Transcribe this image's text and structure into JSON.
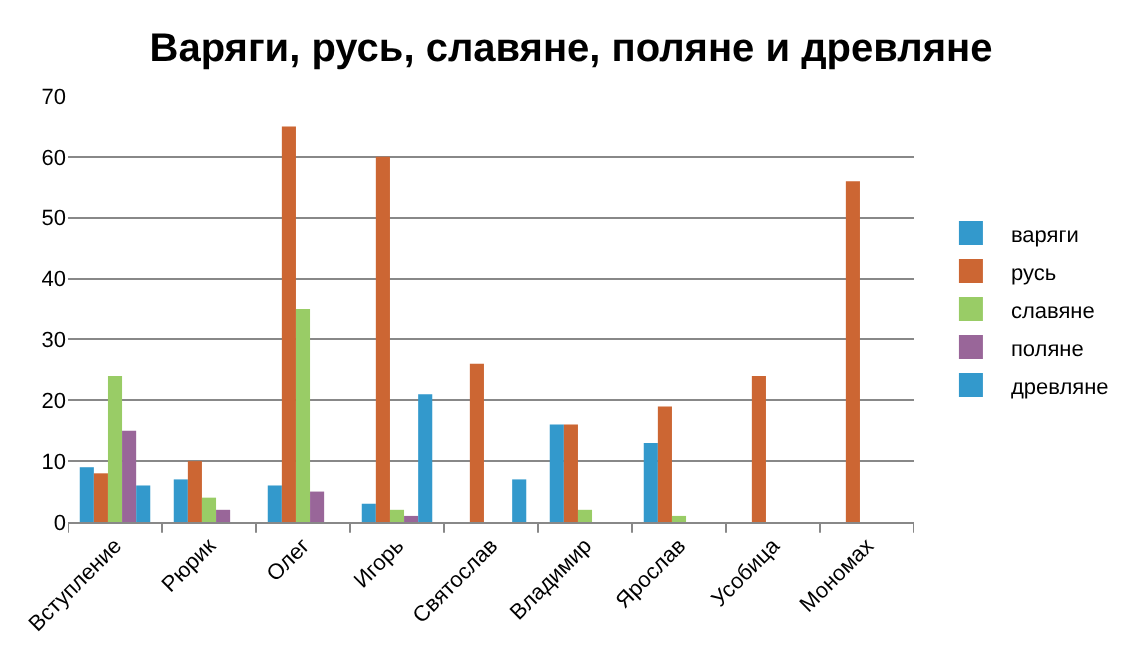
{
  "chart_data": {
    "type": "bar",
    "title": "Варяги, русь, славяне, поляне и древляне",
    "categories": [
      "Вступление",
      "Рюрик",
      "Олег",
      "Игорь",
      "Святослав",
      "Владимир",
      "Ярослав",
      "Усобица",
      "Мономах"
    ],
    "series": [
      {
        "name": "варяги",
        "color": "#3399cc",
        "values": [
          9,
          7,
          6,
          3,
          null,
          16,
          13,
          null,
          null
        ]
      },
      {
        "name": "русь",
        "color": "#cc6633",
        "values": [
          8,
          10,
          65,
          60,
          26,
          16,
          19,
          24,
          56
        ]
      },
      {
        "name": "славяне",
        "color": "#99cc66",
        "values": [
          24,
          4,
          35,
          2,
          null,
          2,
          1,
          null,
          null
        ]
      },
      {
        "name": "поляне",
        "color": "#996699",
        "values": [
          15,
          2,
          5,
          1,
          null,
          null,
          null,
          null,
          null
        ]
      },
      {
        "name": "древляне",
        "color": "#3399cc",
        "values": [
          6,
          null,
          null,
          21,
          7,
          null,
          null,
          null,
          null
        ]
      }
    ],
    "ylim": [
      0,
      70
    ],
    "yticks": [
      0,
      10,
      20,
      30,
      40,
      50,
      60,
      70
    ],
    "grid": "y",
    "legend": "right"
  }
}
